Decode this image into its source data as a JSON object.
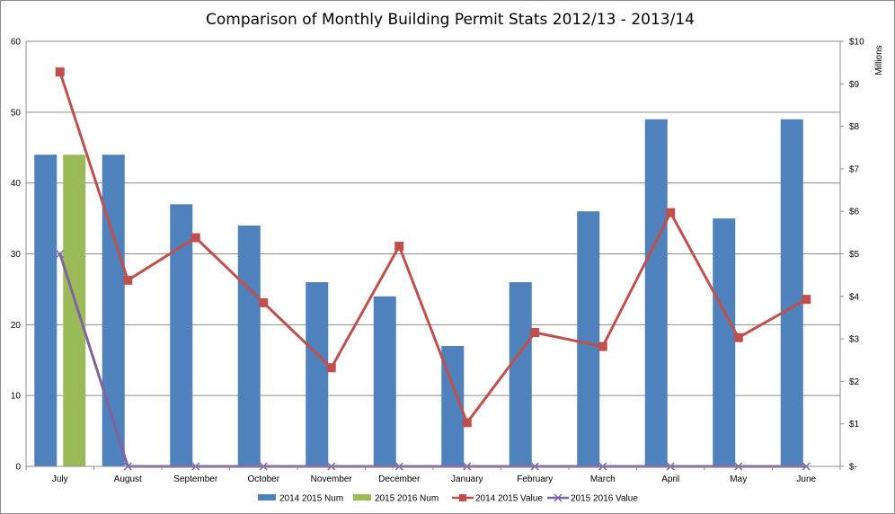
{
  "chart_data": {
    "type": "bar",
    "title": "Comparison of Monthly Building Permit Stats 2012/13  - 2013/14",
    "categories": [
      "July",
      "August",
      "September",
      "October",
      "November",
      "December",
      "January",
      "February",
      "March",
      "April",
      "May",
      "June"
    ],
    "y_left": {
      "min": 0,
      "max": 60,
      "step": 10,
      "tick_labels": [
        "0",
        "10",
        "20",
        "30",
        "40",
        "50",
        "60"
      ]
    },
    "y_right": {
      "min": 0,
      "max": 10,
      "step": 1,
      "label": "Millions",
      "tick_labels": [
        "$-",
        "$1",
        "$2",
        "$3",
        "$4",
        "$5",
        "$6",
        "$7",
        "$8",
        "$9",
        "$10"
      ]
    },
    "grid": true,
    "legend_position": "bottom",
    "series": [
      {
        "name": "2014 2015 Num",
        "kind": "bar",
        "axis": "left",
        "color": "#4f81bd",
        "values": [
          44,
          44,
          37,
          34,
          26,
          24,
          17,
          26,
          36,
          49,
          35,
          49
        ]
      },
      {
        "name": "2015 2016 Num",
        "kind": "bar",
        "axis": "left",
        "color": "#9bbb59",
        "values": [
          44,
          null,
          null,
          null,
          null,
          null,
          null,
          null,
          null,
          null,
          null,
          null
        ]
      },
      {
        "name": "2014 2015 Value",
        "kind": "line",
        "axis": "right",
        "color": "#c0504d",
        "marker": "square",
        "values": [
          9.28,
          4.38,
          5.38,
          3.85,
          2.32,
          5.18,
          1.03,
          3.15,
          2.82,
          5.97,
          3.03,
          3.93
        ]
      },
      {
        "name": "2015 2016 Value",
        "kind": "line",
        "axis": "right",
        "color": "#8064a2",
        "marker": "x",
        "values": [
          5.0,
          0,
          0,
          0,
          0,
          0,
          0,
          0,
          0,
          0,
          0,
          0
        ]
      }
    ]
  }
}
